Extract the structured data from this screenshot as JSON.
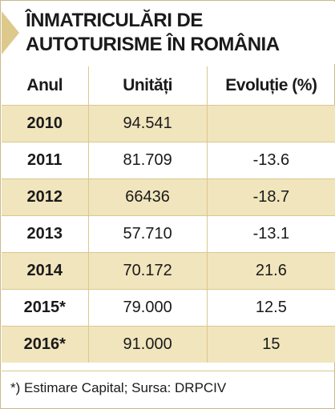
{
  "chart_data": {
    "type": "table",
    "title_lines": [
      "ÎNMATRICULĂRI DE",
      "AUTOTURISME ÎN ROMÂNIA"
    ],
    "columns": [
      "Anul",
      "Unități",
      "Evoluție (%)"
    ],
    "rows": [
      {
        "year": "2010",
        "units": "94.541",
        "change": ""
      },
      {
        "year": "2011",
        "units": "81.709",
        "change": "-13.6"
      },
      {
        "year": "2012",
        "units": "66436",
        "change": "-18.7"
      },
      {
        "year": "2013",
        "units": "57.710",
        "change": "-13.1"
      },
      {
        "year": "2014",
        "units": "70.172",
        "change": "21.6"
      },
      {
        "year": "2015*",
        "units": "79.000",
        "change": "12.5"
      },
      {
        "year": "2016*",
        "units": "91.000",
        "change": "15"
      }
    ],
    "footnote": "*) Estimare Capital; Sursa: DRPCIV"
  },
  "colors": {
    "accent": "#ddc98c",
    "row_shade": "#f1e5bd",
    "rule": "#d9c88f"
  }
}
